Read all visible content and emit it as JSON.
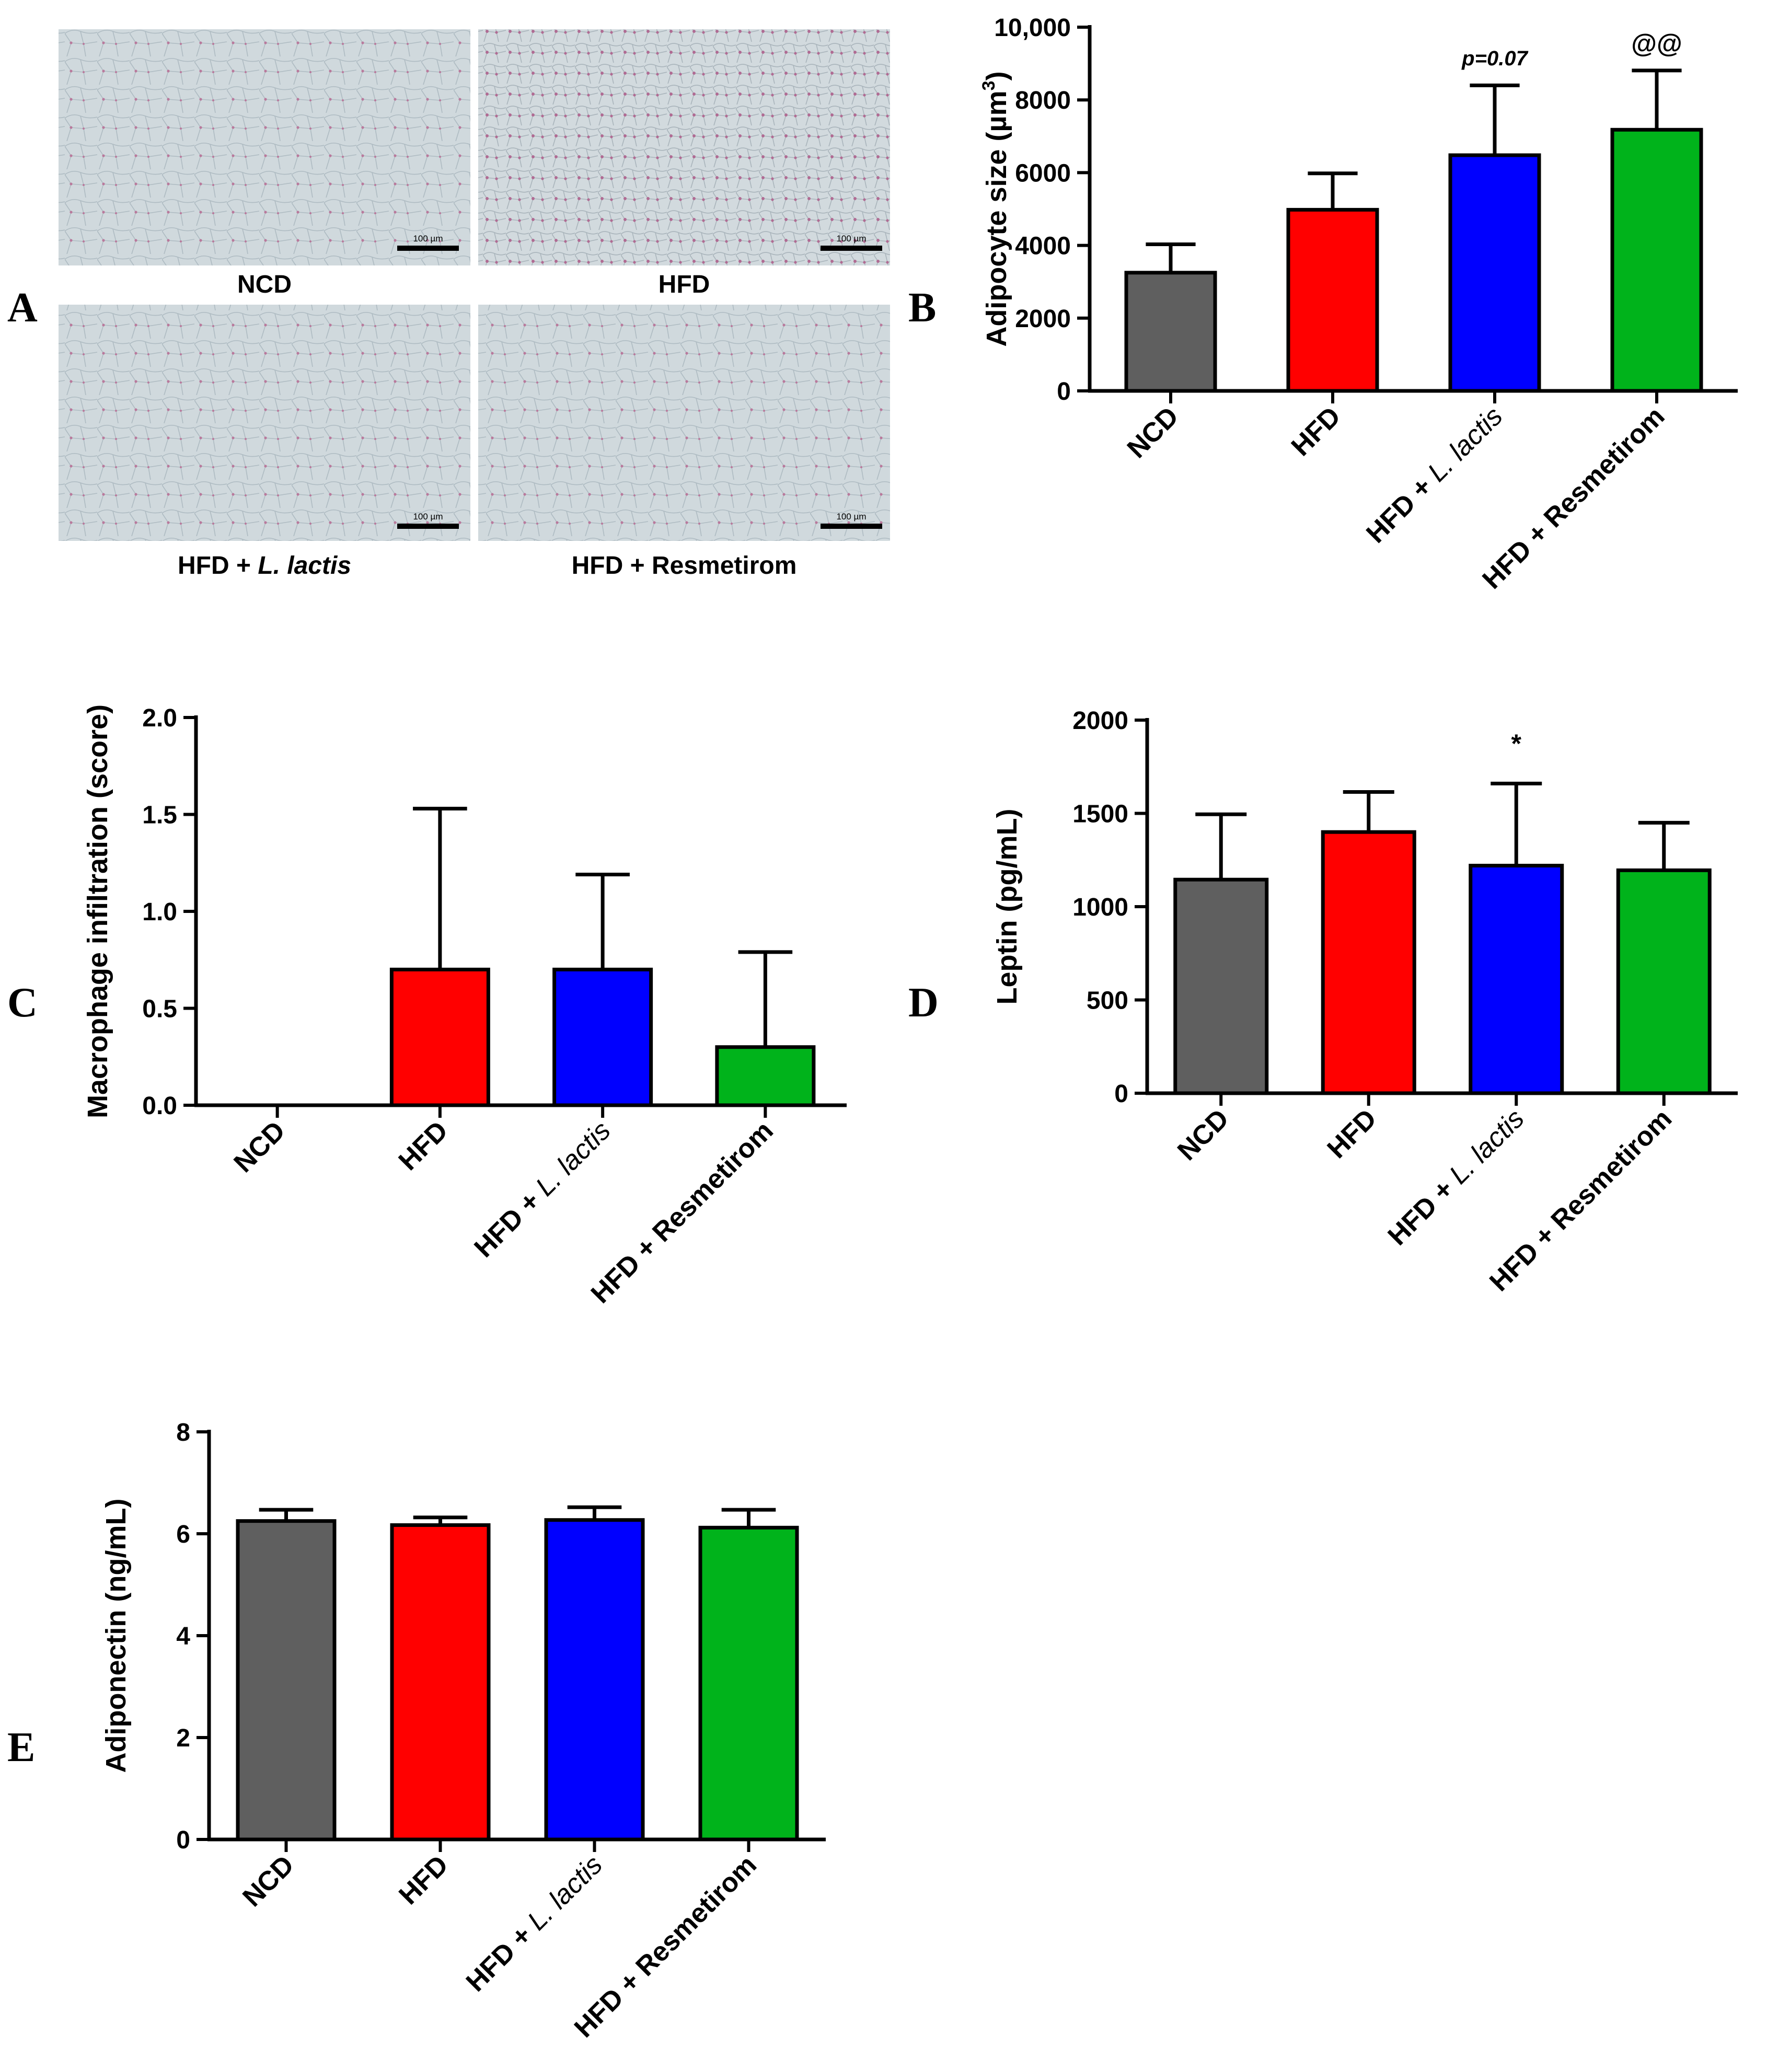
{
  "panel_labels": {
    "a": "A",
    "b": "B",
    "c": "C",
    "d": "D",
    "e": "E"
  },
  "micrographs": {
    "scale_bar_text": "100 µm",
    "tissue_color": "#cfd8dc",
    "stain_color": "#b9799c",
    "images": [
      {
        "caption": "NCD"
      },
      {
        "caption": "HFD"
      },
      {
        "caption_prefix": "HFD + ",
        "caption_italic": "L. lactis"
      },
      {
        "caption": "HFD + Resmetirom"
      }
    ]
  },
  "groups": {
    "names": [
      "NCD",
      "HFD",
      "HFD + L. lactis",
      "HFD + Resmetirom"
    ],
    "prefixes": [
      "NCD",
      "HFD",
      "HFD + ",
      "HFD + Resmetirom"
    ],
    "italic_parts": [
      "",
      "",
      "L. lactis",
      ""
    ],
    "colors": [
      "#5f5f5f",
      "#ff0000",
      "#0000ff",
      "#00b31b"
    ]
  },
  "chart_data": [
    {
      "id": "B",
      "type": "bar",
      "categories": [
        "NCD",
        "HFD",
        "HFD + L. lactis",
        "HFD + Resmetirom"
      ],
      "values": [
        3250,
        4980,
        6480,
        7180
      ],
      "errors": [
        780,
        1000,
        1920,
        1630
      ],
      "ylabel_main": "Adipocyte size (µm",
      "ylabel_sup": "3",
      "ylabel_end": ")",
      "ylim": [
        0,
        10000
      ],
      "yticks": [
        0,
        2000,
        4000,
        6000,
        8000,
        10000
      ],
      "ytick_labels": [
        "0",
        "2000",
        "4000",
        "6000",
        "8000",
        "10,000"
      ],
      "annotations": [
        "",
        "",
        "p=0.07",
        "@@"
      ]
    },
    {
      "id": "C",
      "type": "bar",
      "categories": [
        "NCD",
        "HFD",
        "HFD + L. lactis",
        "HFD + Resmetirom"
      ],
      "values": [
        0,
        0.7,
        0.7,
        0.3
      ],
      "errors": [
        0,
        0.83,
        0.49,
        0.49
      ],
      "ylabel": "Macrophage infiltration (score)",
      "ylim": [
        0,
        2.0
      ],
      "yticks": [
        0,
        0.5,
        1.0,
        1.5,
        2.0
      ],
      "ytick_labels": [
        "0.0",
        "0.5",
        "1.0",
        "1.5",
        "2.0"
      ]
    },
    {
      "id": "D",
      "type": "bar",
      "categories": [
        "NCD",
        "HFD",
        "HFD + L. lactis",
        "HFD + Resmetirom"
      ],
      "values": [
        1145,
        1400,
        1220,
        1195
      ],
      "errors": [
        350,
        215,
        440,
        255
      ],
      "ylabel": "Leptin  (pg/mL)",
      "ylim": [
        0,
        2000
      ],
      "yticks": [
        0,
        500,
        1000,
        1500,
        2000
      ],
      "ytick_labels": [
        "0",
        "500",
        "1000",
        "1500",
        "2000"
      ],
      "annotations": [
        "",
        "",
        "*",
        ""
      ]
    },
    {
      "id": "E",
      "type": "bar",
      "categories": [
        "NCD",
        "HFD",
        "HFD + L. lactis",
        "HFD + Resmetirom"
      ],
      "values": [
        6.25,
        6.17,
        6.27,
        6.12
      ],
      "errors": [
        0.22,
        0.15,
        0.25,
        0.35
      ],
      "ylabel": "Adiponectin (ng/mL)",
      "ylim": [
        0,
        8
      ],
      "yticks": [
        0,
        2,
        4,
        6,
        8
      ],
      "ytick_labels": [
        "0",
        "2",
        "4",
        "6",
        "8"
      ]
    }
  ]
}
